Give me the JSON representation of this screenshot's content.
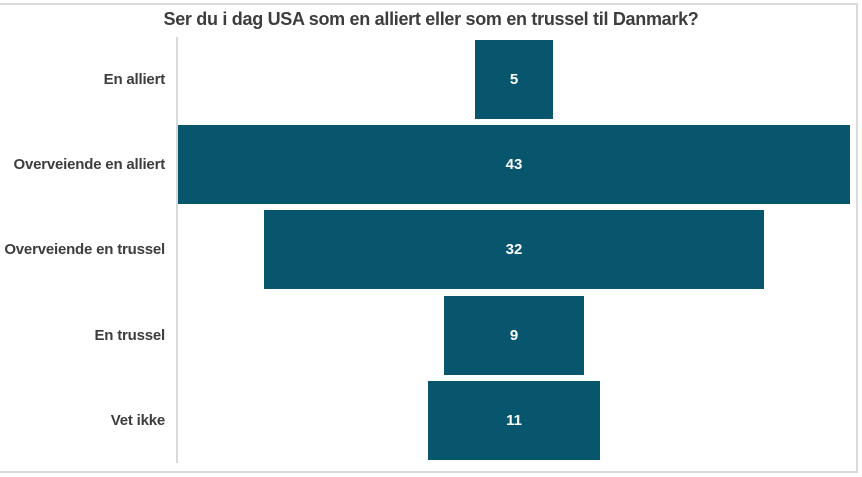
{
  "title": "Ser du i dag USA som en alliert eller som en trussel til Danmark?",
  "colors": {
    "bar": "#08556e",
    "title_text": "#3d3d3d",
    "category_text": "#3d3d3d",
    "value_text": "#ffffff",
    "axis_line": "#d9d9d9",
    "frame_border": "#d9d9d9",
    "background": "#ffffff"
  },
  "chart_data": {
    "type": "bar",
    "orientation": "horizontal-centered",
    "title": "Ser du i dag USA som en alliert eller som en trussel til Danmark?",
    "categories": [
      "En alliert",
      "Overveiende en alliert",
      "Overveiende en trussel",
      "En trussel",
      "Vet ikke"
    ],
    "values": [
      5,
      43,
      32,
      9,
      11
    ],
    "xlabel": "",
    "ylabel": "",
    "xmax": 43,
    "grid": false,
    "legend": false,
    "value_labels": "white-centered-inside-bars",
    "axis_ticks": "none"
  }
}
